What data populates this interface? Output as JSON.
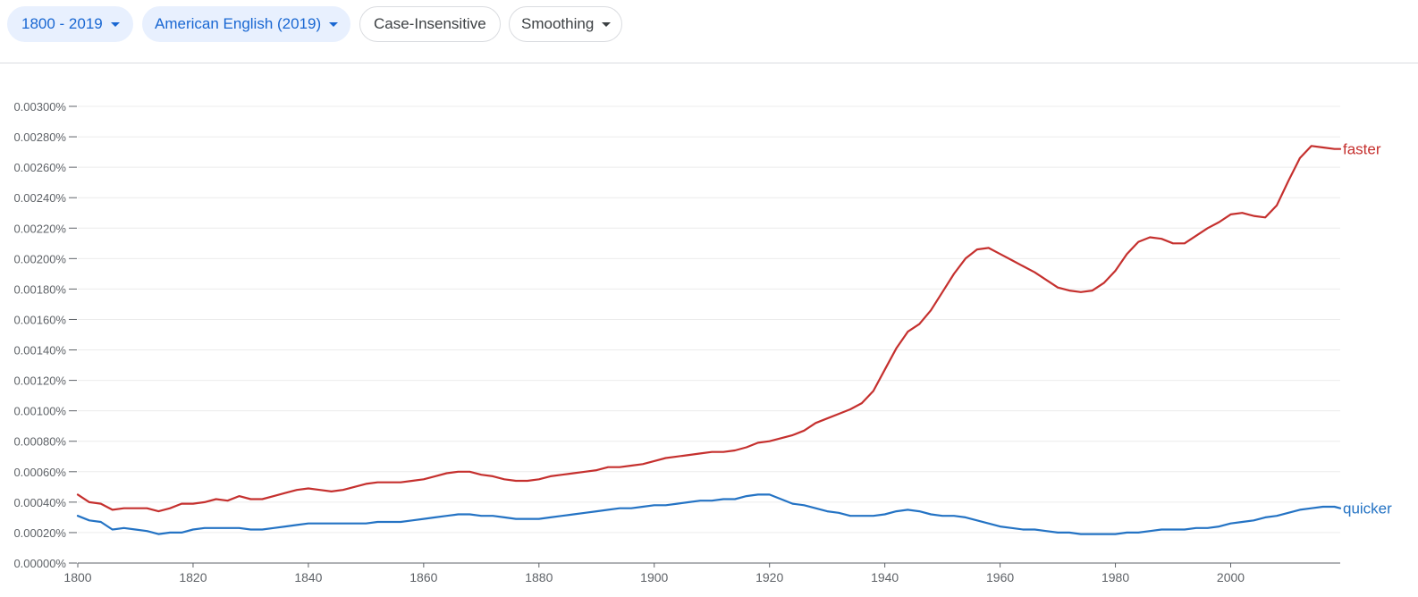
{
  "toolbar": {
    "year_range": "1800 - 2019",
    "corpus": "American English (2019)",
    "case_toggle": "Case-Insensitive",
    "smoothing": "Smoothing"
  },
  "chart_data": {
    "type": "line",
    "title": "",
    "xlabel": "",
    "ylabel": "",
    "xlim": [
      1800,
      2019
    ],
    "ylim": [
      0,
      0.003
    ],
    "x_ticks": [
      1800,
      1820,
      1840,
      1860,
      1880,
      1900,
      1920,
      1940,
      1960,
      1980,
      2000
    ],
    "x_tick_labels": [
      "1800",
      "1820",
      "1840",
      "1860",
      "1880",
      "1900",
      "1920",
      "1940",
      "1960",
      "1980",
      "2000"
    ],
    "y_ticks": [
      0,
      0.0002,
      0.0004,
      0.0006,
      0.0008,
      0.001,
      0.0012,
      0.0014,
      0.0016,
      0.0018,
      0.002,
      0.0022,
      0.0024,
      0.0026,
      0.0028,
      0.003
    ],
    "y_tick_labels": [
      "0.00000%",
      "0.00020%",
      "0.00040%",
      "0.00060%",
      "0.00080%",
      "0.00100%",
      "0.00120%",
      "0.00140%",
      "0.00160%",
      "0.00180%",
      "0.00200%",
      "0.00220%",
      "0.00240%",
      "0.00260%",
      "0.00280%",
      "0.00300%"
    ],
    "series": [
      {
        "name": "faster",
        "color": "#c5302e",
        "x": [
          1800,
          1802,
          1804,
          1806,
          1808,
          1810,
          1812,
          1814,
          1816,
          1818,
          1820,
          1822,
          1824,
          1826,
          1828,
          1830,
          1832,
          1834,
          1836,
          1838,
          1840,
          1842,
          1844,
          1846,
          1848,
          1850,
          1852,
          1854,
          1856,
          1858,
          1860,
          1862,
          1864,
          1866,
          1868,
          1870,
          1872,
          1874,
          1876,
          1878,
          1880,
          1882,
          1884,
          1886,
          1888,
          1890,
          1892,
          1894,
          1896,
          1898,
          1900,
          1902,
          1904,
          1906,
          1908,
          1910,
          1912,
          1914,
          1916,
          1918,
          1920,
          1922,
          1924,
          1926,
          1928,
          1930,
          1932,
          1934,
          1936,
          1938,
          1940,
          1942,
          1944,
          1946,
          1948,
          1950,
          1952,
          1954,
          1956,
          1958,
          1960,
          1962,
          1964,
          1966,
          1968,
          1970,
          1972,
          1974,
          1976,
          1978,
          1980,
          1982,
          1984,
          1986,
          1988,
          1990,
          1992,
          1994,
          1996,
          1998,
          2000,
          2002,
          2004,
          2006,
          2008,
          2010,
          2012,
          2014,
          2016,
          2018,
          2019
        ],
        "values": [
          0.00045,
          0.0004,
          0.00039,
          0.00035,
          0.00036,
          0.00036,
          0.00036,
          0.00034,
          0.00036,
          0.00039,
          0.00039,
          0.0004,
          0.00042,
          0.00041,
          0.00044,
          0.00042,
          0.00042,
          0.00044,
          0.00046,
          0.00048,
          0.00049,
          0.00048,
          0.00047,
          0.00048,
          0.0005,
          0.00052,
          0.00053,
          0.00053,
          0.00053,
          0.00054,
          0.00055,
          0.00057,
          0.00059,
          0.0006,
          0.0006,
          0.00058,
          0.00057,
          0.00055,
          0.00054,
          0.00054,
          0.00055,
          0.00057,
          0.00058,
          0.00059,
          0.0006,
          0.00061,
          0.00063,
          0.00063,
          0.00064,
          0.00065,
          0.00067,
          0.00069,
          0.0007,
          0.00071,
          0.00072,
          0.00073,
          0.00073,
          0.00074,
          0.00076,
          0.00079,
          0.0008,
          0.00082,
          0.00084,
          0.00087,
          0.00092,
          0.00095,
          0.00098,
          0.00101,
          0.00105,
          0.00113,
          0.00127,
          0.00141,
          0.00152,
          0.00157,
          0.00166,
          0.00178,
          0.0019,
          0.002,
          0.00206,
          0.00207,
          0.00203,
          0.00199,
          0.00195,
          0.00191,
          0.00186,
          0.00181,
          0.00179,
          0.00178,
          0.00179,
          0.00184,
          0.00192,
          0.00203,
          0.00211,
          0.00214,
          0.00213,
          0.0021,
          0.0021,
          0.00215,
          0.0022,
          0.00224,
          0.00229,
          0.0023,
          0.00228,
          0.00227,
          0.00235,
          0.00251,
          0.00266,
          0.00274,
          0.00273,
          0.00272,
          0.00272
        ]
      },
      {
        "name": "quicker",
        "color": "#2473c4",
        "x": [
          1800,
          1802,
          1804,
          1806,
          1808,
          1810,
          1812,
          1814,
          1816,
          1818,
          1820,
          1822,
          1824,
          1826,
          1828,
          1830,
          1832,
          1834,
          1836,
          1838,
          1840,
          1842,
          1844,
          1846,
          1848,
          1850,
          1852,
          1854,
          1856,
          1858,
          1860,
          1862,
          1864,
          1866,
          1868,
          1870,
          1872,
          1874,
          1876,
          1878,
          1880,
          1882,
          1884,
          1886,
          1888,
          1890,
          1892,
          1894,
          1896,
          1898,
          1900,
          1902,
          1904,
          1906,
          1908,
          1910,
          1912,
          1914,
          1916,
          1918,
          1920,
          1922,
          1924,
          1926,
          1928,
          1930,
          1932,
          1934,
          1936,
          1938,
          1940,
          1942,
          1944,
          1946,
          1948,
          1950,
          1952,
          1954,
          1956,
          1958,
          1960,
          1962,
          1964,
          1966,
          1968,
          1970,
          1972,
          1974,
          1976,
          1978,
          1980,
          1982,
          1984,
          1986,
          1988,
          1990,
          1992,
          1994,
          1996,
          1998,
          2000,
          2002,
          2004,
          2006,
          2008,
          2010,
          2012,
          2014,
          2016,
          2018,
          2019
        ],
        "values": [
          0.00031,
          0.00028,
          0.00027,
          0.00022,
          0.00023,
          0.00022,
          0.00021,
          0.00019,
          0.0002,
          0.0002,
          0.00022,
          0.00023,
          0.00023,
          0.00023,
          0.00023,
          0.00022,
          0.00022,
          0.00023,
          0.00024,
          0.00025,
          0.00026,
          0.00026,
          0.00026,
          0.00026,
          0.00026,
          0.00026,
          0.00027,
          0.00027,
          0.00027,
          0.00028,
          0.00029,
          0.0003,
          0.00031,
          0.00032,
          0.00032,
          0.00031,
          0.00031,
          0.0003,
          0.00029,
          0.00029,
          0.00029,
          0.0003,
          0.00031,
          0.00032,
          0.00033,
          0.00034,
          0.00035,
          0.00036,
          0.00036,
          0.00037,
          0.00038,
          0.00038,
          0.00039,
          0.0004,
          0.00041,
          0.00041,
          0.00042,
          0.00042,
          0.00044,
          0.00045,
          0.00045,
          0.00042,
          0.00039,
          0.00038,
          0.00036,
          0.00034,
          0.00033,
          0.00031,
          0.00031,
          0.00031,
          0.00032,
          0.00034,
          0.00035,
          0.00034,
          0.00032,
          0.00031,
          0.00031,
          0.0003,
          0.00028,
          0.00026,
          0.00024,
          0.00023,
          0.00022,
          0.00022,
          0.00021,
          0.0002,
          0.0002,
          0.00019,
          0.00019,
          0.00019,
          0.00019,
          0.0002,
          0.0002,
          0.00021,
          0.00022,
          0.00022,
          0.00022,
          0.00023,
          0.00023,
          0.00024,
          0.00026,
          0.00027,
          0.00028,
          0.0003,
          0.00031,
          0.00033,
          0.00035,
          0.00036,
          0.00037,
          0.00037,
          0.00036
        ]
      }
    ]
  }
}
